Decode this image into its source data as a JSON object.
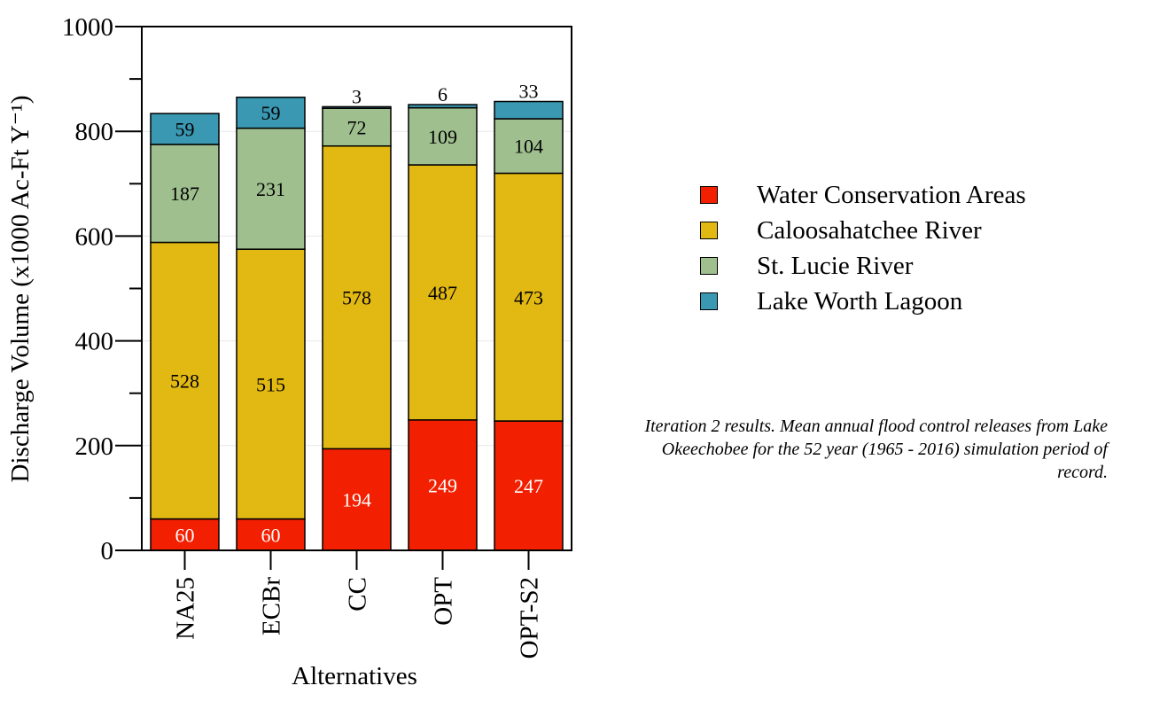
{
  "chart_data": {
    "type": "bar",
    "stacked": true,
    "categories": [
      "NA25",
      "ECBr",
      "CC",
      "OPT",
      "OPT-S2"
    ],
    "series": [
      {
        "name": "Water Conservation Areas",
        "values": [
          60,
          60,
          194,
          249,
          247
        ],
        "color": "#f21f00",
        "label_color": "#ffffff"
      },
      {
        "name": "Caloosahatchee River",
        "values": [
          528,
          515,
          578,
          487,
          473
        ],
        "color": "#e2b813",
        "label_color": "#000000"
      },
      {
        "name": "St. Lucie River",
        "values": [
          187,
          231,
          72,
          109,
          104
        ],
        "color": "#9fbf8f",
        "label_color": "#000000"
      },
      {
        "name": "Lake Worth Lagoon",
        "values": [
          59,
          59,
          3,
          6,
          33
        ],
        "color": "#3a98b2",
        "label_color": "#000000"
      }
    ],
    "xlabel": "Alternatives",
    "ylabel": "Discharge Volume (x1000 Ac-Ft Y⁻¹)",
    "ylim": [
      0,
      1000
    ],
    "yticks": [
      "0",
      "200",
      "400",
      "600",
      "800",
      "1000"
    ],
    "grid": true,
    "legend": "right",
    "annotation": "Iteration 2 results. Mean annual flood control releases from Lake Okeechobee for the 52 year (1965 - 2016) simulation period of record."
  }
}
